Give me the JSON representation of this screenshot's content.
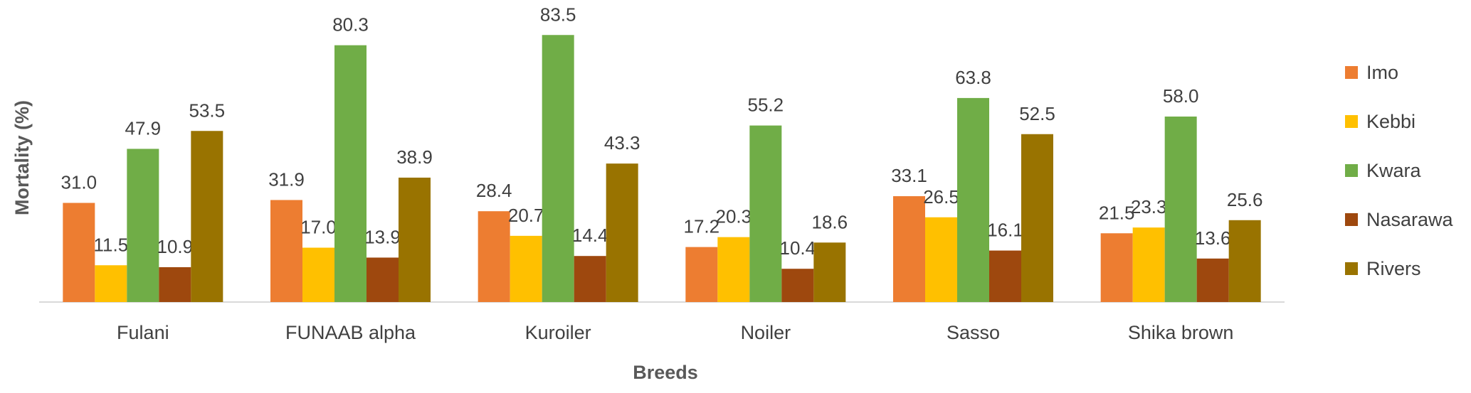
{
  "chart_data": {
    "type": "bar",
    "title": "",
    "xlabel": "Breeds",
    "ylabel": "Mortality (%)",
    "ylim": [
      0,
      90
    ],
    "grid": false,
    "legend_position": "right",
    "categories": [
      "Fulani",
      "FUNAAB alpha",
      "Kuroiler",
      "Noiler",
      "Sasso",
      "Shika brown"
    ],
    "series": [
      {
        "name": "Imo",
        "color": "#ED7D31",
        "values": [
          31.0,
          31.9,
          28.4,
          17.2,
          33.1,
          21.5
        ],
        "labels": [
          "31.0",
          "31.9",
          "28.4",
          "17.2",
          "33.1",
          "21.5"
        ]
      },
      {
        "name": "Kebbi",
        "color": "#FFC000",
        "values": [
          11.5,
          17.0,
          20.7,
          20.3,
          26.5,
          23.3
        ],
        "labels": [
          "11.5",
          "17.0",
          "20.7",
          "20.3",
          "26.5",
          "23.3"
        ]
      },
      {
        "name": "Kwara",
        "color": "#70AD47",
        "values": [
          47.9,
          80.3,
          83.5,
          55.2,
          63.8,
          58.0
        ],
        "labels": [
          "47.9",
          "80.3",
          "83.5",
          "55.2",
          "63.8",
          "58.0"
        ]
      },
      {
        "name": "Nasarawa",
        "color": "#9E480E",
        "values": [
          10.9,
          13.9,
          14.4,
          10.4,
          16.1,
          13.6
        ],
        "labels": [
          "10.9",
          "13.9",
          "14.4",
          "10.4",
          "16.1",
          "13.6"
        ]
      },
      {
        "name": "Rivers",
        "color": "#997300",
        "values": [
          53.5,
          38.9,
          43.3,
          18.6,
          52.5,
          25.6
        ],
        "labels": [
          "53.5",
          "38.9",
          "43.3",
          "18.6",
          "52.5",
          "25.6"
        ]
      }
    ]
  }
}
